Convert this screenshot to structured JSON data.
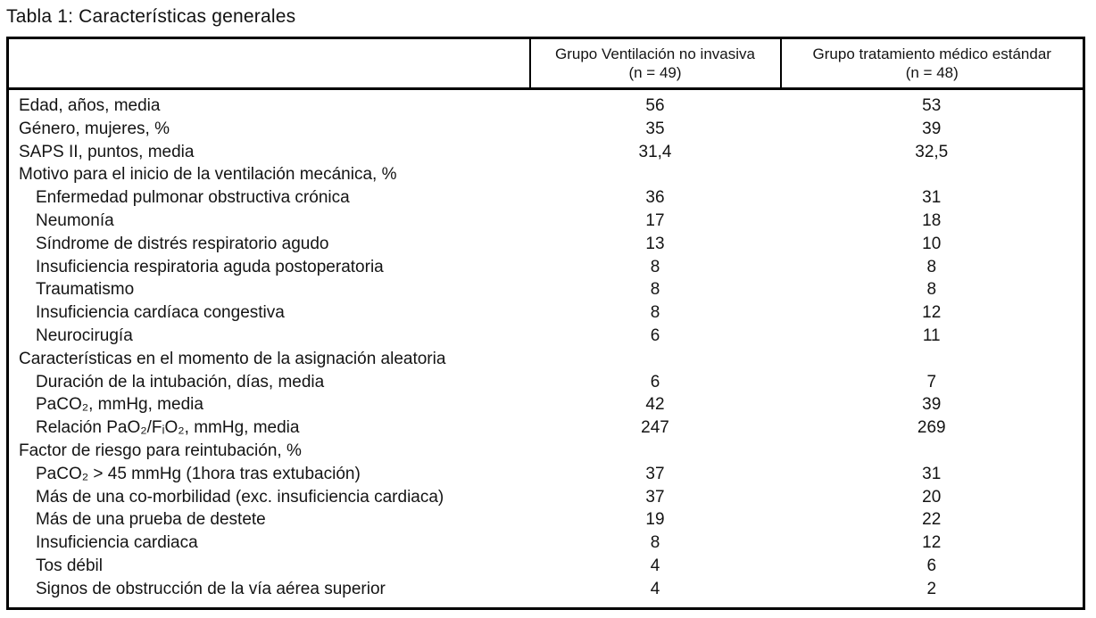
{
  "title": "Tabla 1: Características generales",
  "colors": {
    "background": "#ffffff",
    "text": "#141414",
    "border": "#000000"
  },
  "table": {
    "columns": [
      {
        "line1": "Grupo Ventilación no invasiva",
        "line2": "(n = 49)"
      },
      {
        "line1": "Grupo tratamiento médico estándar",
        "line2": "(n = 48)"
      }
    ],
    "rows": [
      {
        "label": "Edad, años, media",
        "indent": false,
        "niv": "56",
        "standard": "53"
      },
      {
        "label": "Género, mujeres, %",
        "indent": false,
        "niv": "35",
        "standard": "39"
      },
      {
        "label": "SAPS II, puntos, media",
        "indent": false,
        "niv": "31,4",
        "standard": "32,5"
      },
      {
        "label": "Motivo para el inicio de la ventilación mecánica, %",
        "indent": false,
        "niv": "",
        "standard": ""
      },
      {
        "label": "Enfermedad pulmonar obstructiva crónica",
        "indent": true,
        "niv": "36",
        "standard": "31"
      },
      {
        "label": "Neumonía",
        "indent": true,
        "niv": "17",
        "standard": "18"
      },
      {
        "label": "Síndrome de distrés respiratorio agudo",
        "indent": true,
        "niv": "13",
        "standard": "10"
      },
      {
        "label": "Insuficiencia respiratoria aguda postoperatoria",
        "indent": true,
        "niv": "8",
        "standard": "8"
      },
      {
        "label": "Traumatismo",
        "indent": true,
        "niv": "8",
        "standard": "8"
      },
      {
        "label": "Insuficiencia cardíaca congestiva",
        "indent": true,
        "niv": "8",
        "standard": "12"
      },
      {
        "label": "Neurocirugía",
        "indent": true,
        "niv": "6",
        "standard": "11"
      },
      {
        "label": "Características en el momento de la asignación aleatoria",
        "indent": false,
        "niv": "",
        "standard": ""
      },
      {
        "label": "Duración de la intubación, días, media",
        "indent": true,
        "niv": "6",
        "standard": "7"
      },
      {
        "label": "PaCO₂, mmHg, media",
        "indent": true,
        "niv": "42",
        "standard": "39"
      },
      {
        "label": "Relación PaO₂/FᵢO₂, mmHg, media",
        "indent": true,
        "niv": "247",
        "standard": "269"
      },
      {
        "label": "Factor de riesgo para reintubación, %",
        "indent": false,
        "niv": "",
        "standard": ""
      },
      {
        "label": "PaCO₂ > 45 mmHg (1hora tras extubación)",
        "indent": true,
        "niv": "37",
        "standard": "31"
      },
      {
        "label": "Más de una co-morbilidad (exc. insuficiencia cardiaca)",
        "indent": true,
        "niv": "37",
        "standard": "20"
      },
      {
        "label": "Más de una prueba de destete",
        "indent": true,
        "niv": "19",
        "standard": "22"
      },
      {
        "label": "Insuficiencia cardiaca",
        "indent": true,
        "niv": "8",
        "standard": "12"
      },
      {
        "label": "Tos débil",
        "indent": true,
        "niv": "4",
        "standard": "6"
      },
      {
        "label": "Signos de obstrucción de la vía aérea superior",
        "indent": true,
        "niv": "4",
        "standard": "2"
      }
    ]
  }
}
